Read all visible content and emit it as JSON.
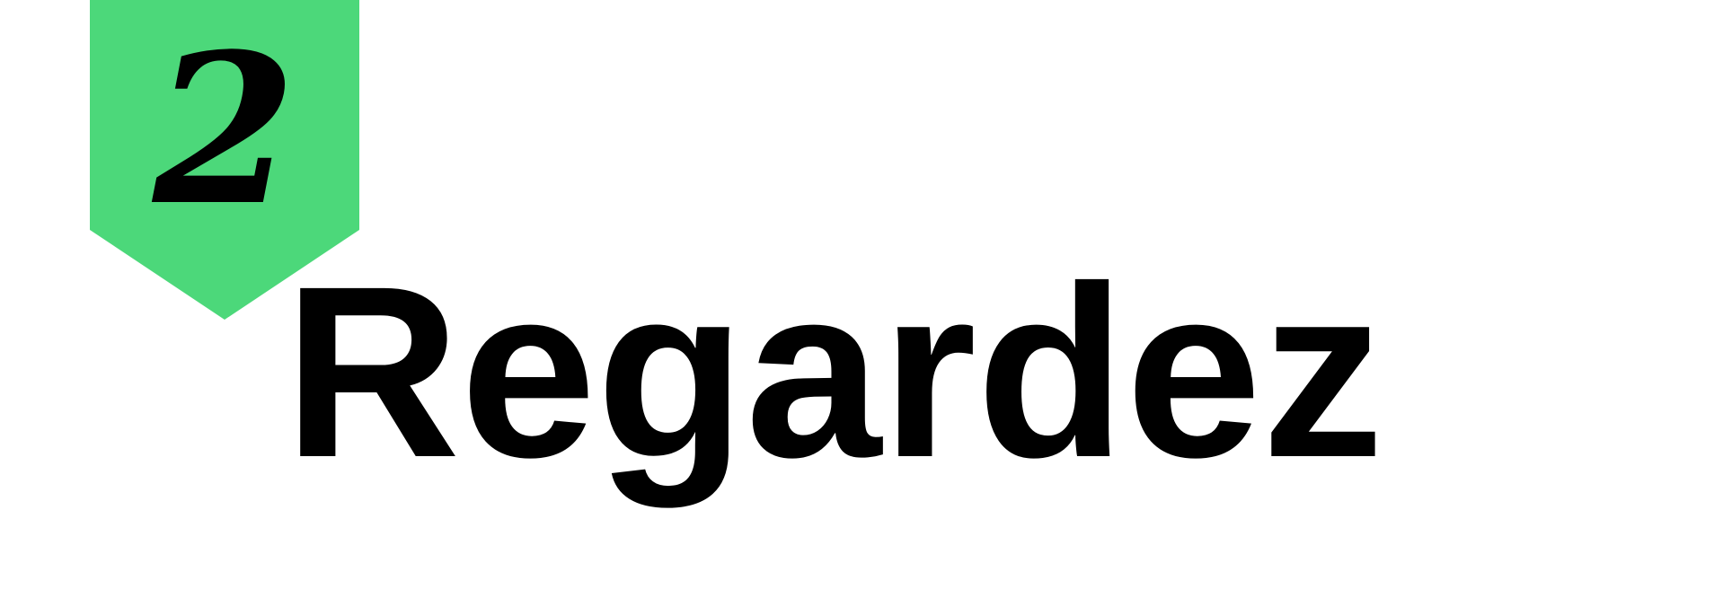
{
  "badge": {
    "number": "2",
    "color": "#4CD87A"
  },
  "word": "Regardez"
}
